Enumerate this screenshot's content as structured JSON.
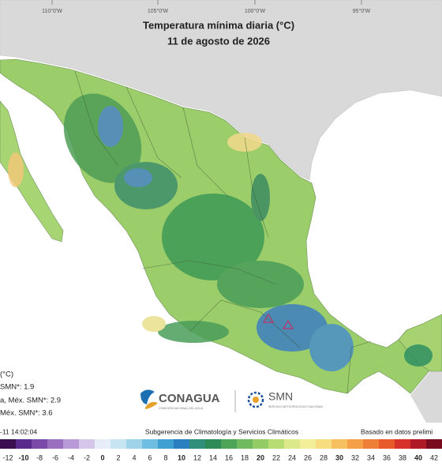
{
  "map": {
    "title": "Temperatura mínima diaria (°C)",
    "subtitle": "11 de agosto de 2026",
    "longitude_labels": [
      "110°0'W",
      "105°0'W",
      "100°0'W",
      "95°0'W"
    ]
  },
  "legend_notes": [
    "(°C)",
    "SMN*: 1.9",
    "a, Méx. SMN*: 2.9",
    "Méx. SMN*: 3.6"
  ],
  "logos": {
    "conagua": "CONAGUA",
    "conagua_sub": "COMISIÓN NACIONAL DEL AGUA",
    "smn": "SMN",
    "smn_sub": "SERVICIO METEOROLÓGICO NACIONAL"
  },
  "footer": {
    "timestamp": "-11 14:02:04",
    "center": "Subgerencia de Climatología y Servicios Climáticos",
    "right": "Basado en datos prelimi"
  },
  "colorbar": {
    "labels": [
      -12,
      -10,
      -8,
      -6,
      -4,
      -2,
      0,
      2,
      4,
      6,
      8,
      10,
      12,
      14,
      16,
      18,
      20,
      22,
      24,
      26,
      28,
      30,
      32,
      34,
      36,
      38,
      40,
      42
    ]
  }
}
